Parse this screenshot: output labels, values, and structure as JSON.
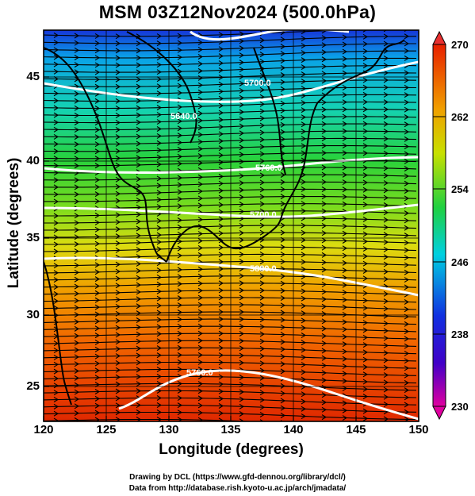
{
  "title": "MSM 03Z12Nov2024 (500.0hPa)",
  "xlabel": "Longitude (degrees)",
  "ylabel": "Latitude  (degrees)",
  "xticks": [
    "120",
    "125",
    "130",
    "135",
    "140",
    "145",
    "150"
  ],
  "yticks": [
    "45",
    "40",
    "35",
    "30",
    "25"
  ],
  "colorbar": {
    "labels": [
      "270",
      "262",
      "254",
      "246",
      "238",
      "230"
    ],
    "range": [
      230,
      270
    ],
    "colors": [
      "#e40080",
      "#1020d8",
      "#00c8e8",
      "#28d848",
      "#f0e800",
      "#f07800",
      "#e82000"
    ]
  },
  "contour_labels": [
    "5700.0",
    "5640.0",
    "5760.0",
    "5700.0",
    "5880.0",
    "5760.0"
  ],
  "credits": {
    "line1": "Drawing by DCL (https://www.gfd-dennou.org/library/dcl/)",
    "line2": "Data from http://database.rish.kyoto-u.ac.jp/arch/jmadata/"
  },
  "map_extent": {
    "lon": [
      120,
      150
    ],
    "lat": [
      22.5,
      48
    ]
  }
}
